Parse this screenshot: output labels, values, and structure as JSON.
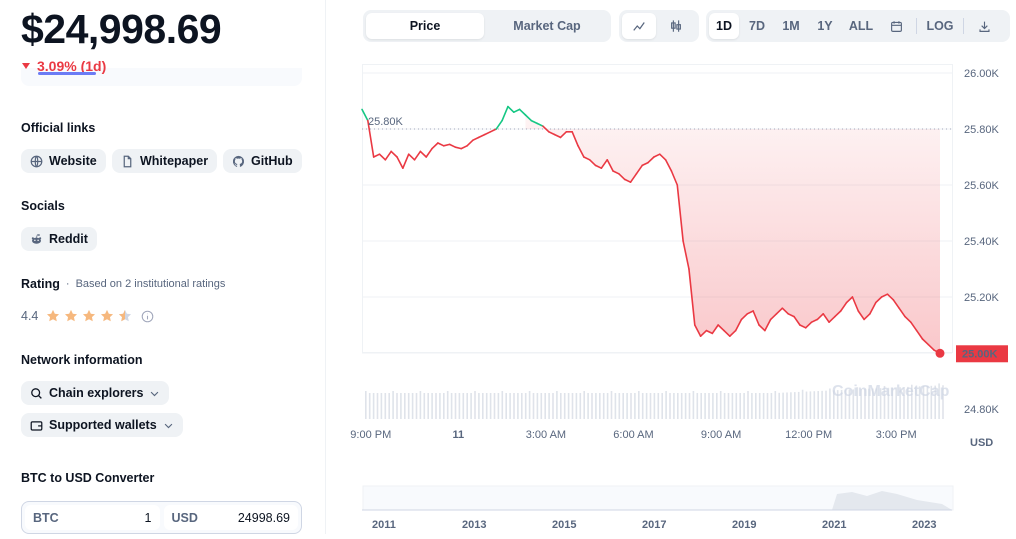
{
  "coin": {
    "price": "$24,998.69",
    "change": "3.09% (1d)"
  },
  "links": {
    "title": "Official links",
    "items": [
      {
        "label": "Website",
        "icon": "globe-icon"
      },
      {
        "label": "Whitepaper",
        "icon": "document-icon"
      },
      {
        "label": "GitHub",
        "icon": "github-icon"
      }
    ]
  },
  "socials": {
    "title": "Socials",
    "items": [
      {
        "label": "Reddit",
        "icon": "reddit-icon"
      }
    ]
  },
  "rating": {
    "title": "Rating",
    "subtitle": "Based on 2 institutional ratings",
    "value": "4.4",
    "stars": 4.4
  },
  "network": {
    "title": "Network information",
    "explorers": "Chain explorers",
    "wallets": "Supported wallets"
  },
  "converter": {
    "title": "BTC to USD Converter",
    "from_currency": "BTC",
    "from_amount": "1",
    "to_currency": "USD",
    "to_amount": "24998.69"
  },
  "chart_controls": {
    "view_tabs": [
      "Price",
      "Market Cap"
    ],
    "active_view": "Price",
    "ranges": [
      "1D",
      "7D",
      "1M",
      "1Y",
      "ALL"
    ],
    "active_range": "1D",
    "log_label": "LOG"
  },
  "colors": {
    "down": "#ea3943",
    "up": "#16c784",
    "accent": "#6b7cf5"
  },
  "chart_data": {
    "type": "line",
    "ylabel": "USD",
    "ylim": [
      24750,
      26000
    ],
    "y_ticks": [
      "26.00K",
      "25.80K",
      "25.60K",
      "25.40K",
      "25.20K",
      "25.00K",
      "24.80K"
    ],
    "y_tick_values": [
      26000,
      25800,
      25600,
      25400,
      25200,
      25000,
      24800
    ],
    "x_ticks": [
      "9:00 PM",
      "11",
      "3:00 AM",
      "6:00 AM",
      "9:00 AM",
      "12:00 PM",
      "3:00 PM"
    ],
    "x_tick_hours": [
      0,
      3,
      6,
      9,
      12,
      15,
      18
    ],
    "open_label": "25.80K",
    "open_value": 25800,
    "current_label": "25.00K",
    "watermark": "CoinMarketCap",
    "series": [
      {
        "x_hours": [
          -0.3,
          -0.1,
          0.1,
          0.3,
          0.5,
          0.7,
          0.9,
          1.1,
          1.3,
          1.5,
          1.7,
          1.9,
          2.1,
          2.3,
          2.5,
          2.7,
          2.9,
          3.1,
          3.3,
          3.5,
          3.7,
          3.9,
          4.1,
          4.3,
          4.5,
          4.7,
          4.9,
          5.1,
          5.3,
          5.5,
          5.7,
          5.9,
          6.1,
          6.3,
          6.5,
          6.7,
          6.9,
          7.1,
          7.3,
          7.5,
          7.7,
          7.9,
          8.1,
          8.3,
          8.5,
          8.7,
          8.9,
          9.1,
          9.3,
          9.5,
          9.7,
          9.9,
          10.1,
          10.3,
          10.5,
          10.7,
          10.9,
          11.1,
          11.3,
          11.5,
          11.7,
          11.9,
          12.1,
          12.3,
          12.5,
          12.7,
          12.9,
          13.1,
          13.3,
          13.5,
          13.7,
          13.9,
          14.1,
          14.3,
          14.5,
          14.7,
          14.9,
          15.1,
          15.3,
          15.5,
          15.7,
          15.9,
          16.1,
          16.3,
          16.5,
          16.7,
          16.9,
          17.1,
          17.3,
          17.5,
          17.7,
          17.9,
          18.1,
          18.3,
          18.5,
          18.7,
          18.9,
          19.1,
          19.3,
          19.5
        ],
        "values": [
          25870,
          25830,
          25700,
          25710,
          25690,
          25720,
          25700,
          25660,
          25710,
          25690,
          25720,
          25700,
          25730,
          25750,
          25740,
          25745,
          25735,
          25730,
          25740,
          25760,
          25770,
          25780,
          25790,
          25800,
          25830,
          25880,
          25860,
          25870,
          25850,
          25830,
          25820,
          25810,
          25790,
          25780,
          25770,
          25790,
          25790,
          25740,
          25700,
          25690,
          25670,
          25660,
          25690,
          25650,
          25640,
          25620,
          25610,
          25640,
          25670,
          25680,
          25700,
          25710,
          25690,
          25650,
          25600,
          25400,
          25300,
          25100,
          25060,
          25080,
          25070,
          25100,
          25080,
          25060,
          25080,
          25120,
          25140,
          25150,
          25100,
          25080,
          25120,
          25140,
          25160,
          25140,
          25130,
          25100,
          25090,
          25110,
          25120,
          25140,
          25110,
          25130,
          25150,
          25180,
          25200,
          25150,
          25120,
          25140,
          25180,
          25200,
          25210,
          25190,
          25160,
          25130,
          25110,
          25080,
          25050,
          25030,
          25010,
          24999
        ]
      }
    ]
  },
  "navigator": {
    "years": [
      "2011",
      "2013",
      "2015",
      "2017",
      "2019",
      "2021",
      "2023"
    ]
  }
}
